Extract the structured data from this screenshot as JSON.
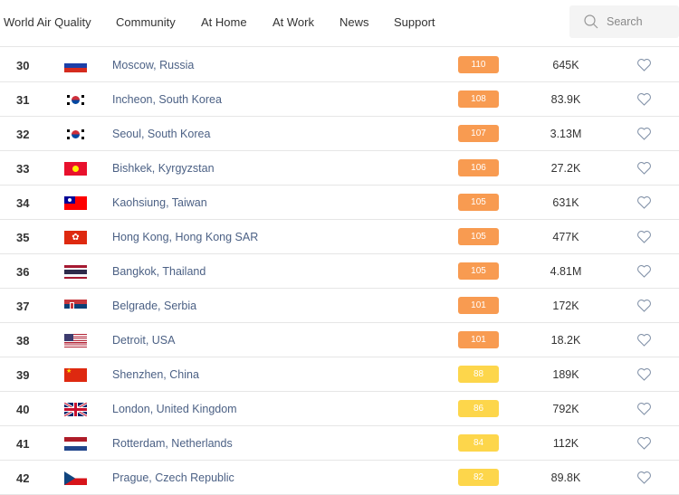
{
  "nav": {
    "brand": "World Air Quality",
    "items": [
      "Community",
      "At Home",
      "At Work",
      "News",
      "Support"
    ],
    "search_placeholder": "Search"
  },
  "colors": {
    "orange": "#f89b51",
    "yellow": "#fdd64b"
  },
  "rows": [
    {
      "rank": "30",
      "flag": "russia",
      "city": "Moscow, Russia",
      "aqi": "110",
      "level": "orange",
      "population": "645K"
    },
    {
      "rank": "31",
      "flag": "south-korea",
      "city": "Incheon, South Korea",
      "aqi": "108",
      "level": "orange",
      "population": "83.9K"
    },
    {
      "rank": "32",
      "flag": "south-korea",
      "city": "Seoul, South Korea",
      "aqi": "107",
      "level": "orange",
      "population": "3.13M"
    },
    {
      "rank": "33",
      "flag": "kyrgyzstan",
      "city": "Bishkek, Kyrgyzstan",
      "aqi": "106",
      "level": "orange",
      "population": "27.2K"
    },
    {
      "rank": "34",
      "flag": "taiwan",
      "city": "Kaohsiung, Taiwan",
      "aqi": "105",
      "level": "orange",
      "population": "631K"
    },
    {
      "rank": "35",
      "flag": "hong-kong",
      "city": "Hong Kong, Hong Kong SAR",
      "aqi": "105",
      "level": "orange",
      "population": "477K"
    },
    {
      "rank": "36",
      "flag": "thailand",
      "city": "Bangkok, Thailand",
      "aqi": "105",
      "level": "orange",
      "population": "4.81M"
    },
    {
      "rank": "37",
      "flag": "serbia",
      "city": "Belgrade, Serbia",
      "aqi": "101",
      "level": "orange",
      "population": "172K"
    },
    {
      "rank": "38",
      "flag": "usa",
      "city": "Detroit, USA",
      "aqi": "101",
      "level": "orange",
      "population": "18.2K"
    },
    {
      "rank": "39",
      "flag": "china",
      "city": "Shenzhen, China",
      "aqi": "88",
      "level": "yellow",
      "population": "189K"
    },
    {
      "rank": "40",
      "flag": "united-kingdom",
      "city": "London, United Kingdom",
      "aqi": "86",
      "level": "yellow",
      "population": "792K"
    },
    {
      "rank": "41",
      "flag": "netherlands",
      "city": "Rotterdam, Netherlands",
      "aqi": "84",
      "level": "yellow",
      "population": "112K"
    },
    {
      "rank": "42",
      "flag": "czech-republic",
      "city": "Prague, Czech Republic",
      "aqi": "82",
      "level": "yellow",
      "population": "89.8K"
    }
  ]
}
